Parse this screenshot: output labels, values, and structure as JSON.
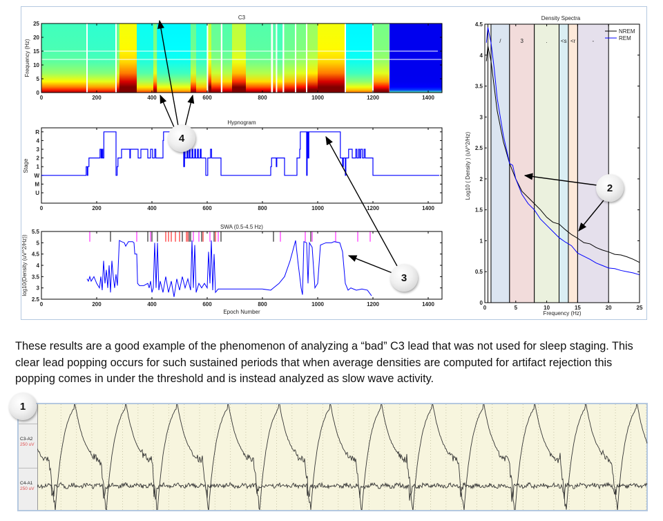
{
  "caption": "These results are a good example of the phenomenon of analyzing a “bad” C3 lead that was not used for sleep staging. This clear lead popping occurs for such sustained periods that when average densities are computed for artifact rejection this popping comes in under the threshold and is instead analyzed as slow wave activity.",
  "callouts": [
    "1",
    "2",
    "3",
    "4"
  ],
  "eeg": {
    "channels": [
      {
        "name": "C3-A2",
        "scale": "250 uV"
      },
      {
        "name": "C4-A1",
        "scale": "250 uV"
      }
    ],
    "trace_color": "#333333",
    "background": "#f7f5de"
  },
  "chart_data": [
    {
      "type": "heatmap",
      "title": "C3",
      "ylabel": "Frequency (Hz)",
      "xlabel": "",
      "xlim": [
        0,
        1450
      ],
      "ylim": [
        0,
        25
      ],
      "xticks": [
        0,
        200,
        400,
        600,
        800,
        1000,
        1200,
        1400
      ],
      "yticks": [
        0,
        5,
        10,
        15,
        20,
        25
      ],
      "colormap": "jet",
      "relative_power_segments": [
        [
          0,
          162,
          0.45
        ],
        [
          167,
          268,
          0.4
        ],
        [
          272,
          282,
          0.55
        ],
        [
          282,
          345,
          0.95
        ],
        [
          345,
          405,
          0.3
        ],
        [
          405,
          418,
          0.6
        ],
        [
          418,
          540,
          0.25
        ],
        [
          540,
          560,
          0.55
        ],
        [
          560,
          600,
          0.35
        ],
        [
          603,
          615,
          0.8
        ],
        [
          615,
          650,
          0.55
        ],
        [
          655,
          690,
          0.5
        ],
        [
          690,
          740,
          0.8
        ],
        [
          740,
          830,
          0.5
        ],
        [
          838,
          848,
          0.5
        ],
        [
          853,
          872,
          0.45
        ],
        [
          878,
          918,
          0.55
        ],
        [
          922,
          958,
          0.6
        ],
        [
          962,
          1000,
          0.7
        ],
        [
          1000,
          1097,
          0.95
        ],
        [
          1102,
          1198,
          0.25
        ],
        [
          1202,
          1258,
          0.6
        ],
        [
          1260,
          1450,
          0
        ]
      ],
      "white_gaps": [
        165,
        270,
        601,
        652,
        835,
        851,
        876,
        920,
        960,
        1100,
        1200
      ],
      "white_lines_hz": [
        12,
        15
      ]
    },
    {
      "type": "line",
      "title": "Hypnogram",
      "ylabel": "Stage",
      "xlabel": "",
      "xlim": [
        0,
        1450
      ],
      "xticks": [
        0,
        200,
        400,
        600,
        800,
        1000,
        1200,
        1400
      ],
      "stage_labels": [
        "U",
        "M",
        "W",
        "1",
        "2",
        "3",
        "4",
        "R"
      ],
      "color": "#0000ff",
      "steps": [
        [
          0,
          "W"
        ],
        [
          162,
          "1"
        ],
        [
          166,
          "W"
        ],
        [
          168,
          "1"
        ],
        [
          172,
          "2"
        ],
        [
          212,
          "3"
        ],
        [
          216,
          "2"
        ],
        [
          219,
          "3"
        ],
        [
          222,
          "2"
        ],
        [
          226,
          "R"
        ],
        [
          270,
          "W"
        ],
        [
          274,
          "1"
        ],
        [
          277,
          "2"
        ],
        [
          290,
          "3"
        ],
        [
          320,
          "2"
        ],
        [
          322,
          "3"
        ],
        [
          350,
          "2"
        ],
        [
          360,
          "3"
        ],
        [
          385,
          "2"
        ],
        [
          395,
          "3"
        ],
        [
          402,
          "2"
        ],
        [
          410,
          "3"
        ],
        [
          414,
          "2"
        ],
        [
          440,
          "4"
        ],
        [
          442,
          "R"
        ],
        [
          510,
          "3"
        ],
        [
          515,
          "1"
        ],
        [
          518,
          "3"
        ],
        [
          520,
          "2"
        ],
        [
          527,
          "3"
        ],
        [
          530,
          "2"
        ],
        [
          535,
          "3"
        ],
        [
          538,
          "2"
        ],
        [
          545,
          "3"
        ],
        [
          548,
          "2"
        ],
        [
          555,
          "3"
        ],
        [
          558,
          "2"
        ],
        [
          565,
          "3"
        ],
        [
          568,
          "2"
        ],
        [
          575,
          "3"
        ],
        [
          578,
          "2"
        ],
        [
          595,
          "W"
        ],
        [
          602,
          "2"
        ],
        [
          612,
          "3"
        ],
        [
          616,
          "2"
        ],
        [
          650,
          "W"
        ],
        [
          830,
          "1"
        ],
        [
          833,
          "2"
        ],
        [
          850,
          "1"
        ],
        [
          852,
          "2"
        ],
        [
          880,
          "W"
        ],
        [
          925,
          "2"
        ],
        [
          935,
          "3"
        ],
        [
          937,
          "R"
        ],
        [
          960,
          "W"
        ],
        [
          962,
          "R"
        ],
        [
          965,
          "2"
        ],
        [
          968,
          "R"
        ],
        [
          1082,
          "2"
        ],
        [
          1090,
          "1"
        ],
        [
          1093,
          "2"
        ],
        [
          1100,
          "W"
        ],
        [
          1102,
          "2"
        ],
        [
          1112,
          "3"
        ],
        [
          1125,
          "2"
        ],
        [
          1138,
          "3"
        ],
        [
          1142,
          "2"
        ],
        [
          1148,
          "3"
        ],
        [
          1152,
          "2"
        ],
        [
          1156,
          "3"
        ],
        [
          1162,
          "2"
        ],
        [
          1168,
          "3"
        ],
        [
          1172,
          "2"
        ],
        [
          1200,
          "W"
        ],
        [
          1440,
          "W"
        ]
      ]
    },
    {
      "type": "line",
      "title": "SWA (0.5-4.5 Hz)",
      "ylabel": "log10(Density (uV^2/Hz))",
      "xlabel": "Epoch Number",
      "xlim": [
        0,
        1450
      ],
      "ylim": [
        2.5,
        5.5
      ],
      "xticks": [
        0,
        200,
        400,
        600,
        800,
        1000,
        1200,
        1400
      ],
      "yticks": [
        2.5,
        3,
        3.5,
        4,
        4.5,
        5,
        5.5
      ],
      "color": "#0000ff",
      "points": [
        [
          165,
          3.4
        ],
        [
          170,
          3.3
        ],
        [
          175,
          3.5
        ],
        [
          180,
          3.3
        ],
        [
          190,
          3.5
        ],
        [
          200,
          3.2
        ],
        [
          210,
          3.0
        ],
        [
          215,
          3.5
        ],
        [
          220,
          2.9
        ],
        [
          225,
          4.2
        ],
        [
          230,
          3.2
        ],
        [
          235,
          3.8
        ],
        [
          240,
          3.0
        ],
        [
          245,
          4.0
        ],
        [
          250,
          2.8
        ],
        [
          255,
          4.2
        ],
        [
          260,
          3.5
        ],
        [
          265,
          3.0
        ],
        [
          270,
          3.6
        ],
        [
          275,
          3.1
        ],
        [
          282,
          5.1
        ],
        [
          290,
          5.05
        ],
        [
          300,
          5.0
        ],
        [
          305,
          4.85
        ],
        [
          315,
          5.05
        ],
        [
          330,
          5.05
        ],
        [
          335,
          5.0
        ],
        [
          338,
          4.5
        ],
        [
          345,
          4.5
        ],
        [
          348,
          3.2
        ],
        [
          355,
          3.1
        ],
        [
          370,
          3.1
        ],
        [
          385,
          3.2
        ],
        [
          390,
          3.0
        ],
        [
          395,
          3.3
        ],
        [
          400,
          2.8
        ],
        [
          405,
          3.0
        ],
        [
          410,
          5.0
        ],
        [
          415,
          3.0
        ],
        [
          420,
          5.0
        ],
        [
          425,
          2.9
        ],
        [
          430,
          3.3
        ],
        [
          440,
          2.8
        ],
        [
          450,
          3.5
        ],
        [
          460,
          2.8
        ],
        [
          470,
          3.3
        ],
        [
          480,
          2.6
        ],
        [
          490,
          3.4
        ],
        [
          500,
          2.9
        ],
        [
          510,
          3.5
        ],
        [
          520,
          3.0
        ],
        [
          530,
          3.4
        ],
        [
          540,
          2.9
        ],
        [
          545,
          5.1
        ],
        [
          550,
          3.0
        ],
        [
          555,
          4.9
        ],
        [
          560,
          2.8
        ],
        [
          570,
          3.2
        ],
        [
          580,
          3.0
        ],
        [
          590,
          3.2
        ],
        [
          600,
          3.0
        ],
        [
          605,
          4.6
        ],
        [
          610,
          3.2
        ],
        [
          615,
          5.1
        ],
        [
          620,
          2.9
        ],
        [
          625,
          4.5
        ],
        [
          630,
          2.8
        ],
        [
          640,
          2.95
        ],
        [
          700,
          2.95
        ],
        [
          800,
          2.95
        ],
        [
          830,
          2.9
        ],
        [
          840,
          3.0
        ],
        [
          860,
          3.2
        ],
        [
          880,
          3.5
        ],
        [
          900,
          4.2
        ],
        [
          920,
          5.1
        ],
        [
          930,
          4.0
        ],
        [
          940,
          3.0
        ],
        [
          945,
          2.7
        ],
        [
          950,
          5.05
        ],
        [
          960,
          5.0
        ],
        [
          965,
          3.2
        ],
        [
          970,
          5.0
        ],
        [
          980,
          4.8
        ],
        [
          990,
          3.0
        ],
        [
          1000,
          3.2
        ],
        [
          1010,
          4.9
        ],
        [
          1020,
          4.95
        ],
        [
          1030,
          5.0
        ],
        [
          1050,
          5.0
        ],
        [
          1060,
          5.05
        ],
        [
          1080,
          5.0
        ],
        [
          1090,
          4.6
        ],
        [
          1100,
          3.2
        ],
        [
          1110,
          2.9
        ],
        [
          1120,
          3.0
        ],
        [
          1140,
          2.9
        ],
        [
          1160,
          2.95
        ],
        [
          1180,
          2.9
        ],
        [
          1195,
          2.65
        ]
      ],
      "event_markers": {
        "magenta": [
          175,
          345,
          395,
          550,
          570,
          610,
          640,
          865,
          955,
          980,
          1065,
          1145,
          1190
        ],
        "black": [
          250,
          385,
          400,
          420,
          510,
          535,
          540,
          580,
          625,
          650,
          840,
          975
        ],
        "red": [
          450,
          460,
          470,
          485,
          500,
          525,
          530,
          585,
          630
        ]
      }
    },
    {
      "type": "line",
      "title": "Density Spectra",
      "xlabel": "Frequency (Hz)",
      "ylabel": "Log10 ( Density ) (uV^2/Hz)",
      "xlim": [
        0,
        25
      ],
      "ylim": [
        0,
        4.5
      ],
      "xticks": [
        0,
        5,
        10,
        15,
        20,
        25
      ],
      "yticks": [
        0,
        0.5,
        1,
        1.5,
        2,
        2.5,
        3,
        3.5,
        4,
        4.5
      ],
      "legend_position": "top-right",
      "bands": [
        {
          "from": 0.5,
          "to": 1,
          "label": "",
          "color": "#ffffff"
        },
        {
          "from": 1,
          "to": 4,
          "label": "/",
          "color": "#dbe5f1"
        },
        {
          "from": 4,
          "to": 8,
          "label": "3",
          "color": "#f2dcdb"
        },
        {
          "from": 8,
          "to": 12,
          "label": ".",
          "color": "#ebf1de"
        },
        {
          "from": 12,
          "to": 13.5,
          "label": "<s",
          "color": "#daeef3"
        },
        {
          "from": 13.5,
          "to": 15,
          "label": "<r",
          "color": "#fde9d9"
        },
        {
          "from": 15,
          "to": 20,
          "label": "-",
          "color": "#e5e0ec"
        }
      ],
      "series": [
        {
          "name": "NREM",
          "color": "#000000",
          "points": [
            [
              0.25,
              3.9
            ],
            [
              0.5,
              4.15
            ],
            [
              1,
              3.9
            ],
            [
              1.5,
              3.5
            ],
            [
              2,
              3.1
            ],
            [
              3,
              2.6
            ],
            [
              4,
              2.25
            ],
            [
              5,
              2.0
            ],
            [
              6,
              1.8
            ],
            [
              7,
              1.7
            ],
            [
              8,
              1.6
            ],
            [
              9,
              1.5
            ],
            [
              10,
              1.38
            ],
            [
              11,
              1.3
            ],
            [
              12,
              1.27
            ],
            [
              13,
              1.18
            ],
            [
              14,
              1.1
            ],
            [
              15,
              1.04
            ],
            [
              16,
              0.97
            ],
            [
              17,
              0.95
            ],
            [
              18,
              0.89
            ],
            [
              19,
              0.85
            ],
            [
              20,
              0.82
            ],
            [
              21,
              0.78
            ],
            [
              22,
              0.77
            ],
            [
              23,
              0.74
            ],
            [
              24,
              0.7
            ],
            [
              25,
              0.65
            ]
          ]
        },
        {
          "name": "REM",
          "color": "#0000ff",
          "points": [
            [
              0.25,
              4.2
            ],
            [
              0.5,
              4.45
            ],
            [
              1,
              4.2
            ],
            [
              1.5,
              3.8
            ],
            [
              2,
              3.3
            ],
            [
              3,
              2.7
            ],
            [
              4,
              2.25
            ],
            [
              4.5,
              2.22
            ],
            [
              5,
              2.0
            ],
            [
              6,
              1.75
            ],
            [
              7,
              1.6
            ],
            [
              8,
              1.5
            ],
            [
              9,
              1.35
            ],
            [
              10,
              1.25
            ],
            [
              11,
              1.15
            ],
            [
              12,
              1.05
            ],
            [
              13,
              0.98
            ],
            [
              14,
              0.92
            ],
            [
              15,
              0.8
            ],
            [
              16,
              0.75
            ],
            [
              17,
              0.7
            ],
            [
              18,
              0.64
            ],
            [
              19,
              0.6
            ],
            [
              20,
              0.56
            ],
            [
              21,
              0.55
            ],
            [
              22,
              0.52
            ],
            [
              23,
              0.5
            ],
            [
              24,
              0.48
            ],
            [
              25,
              0.45
            ]
          ]
        }
      ]
    }
  ]
}
